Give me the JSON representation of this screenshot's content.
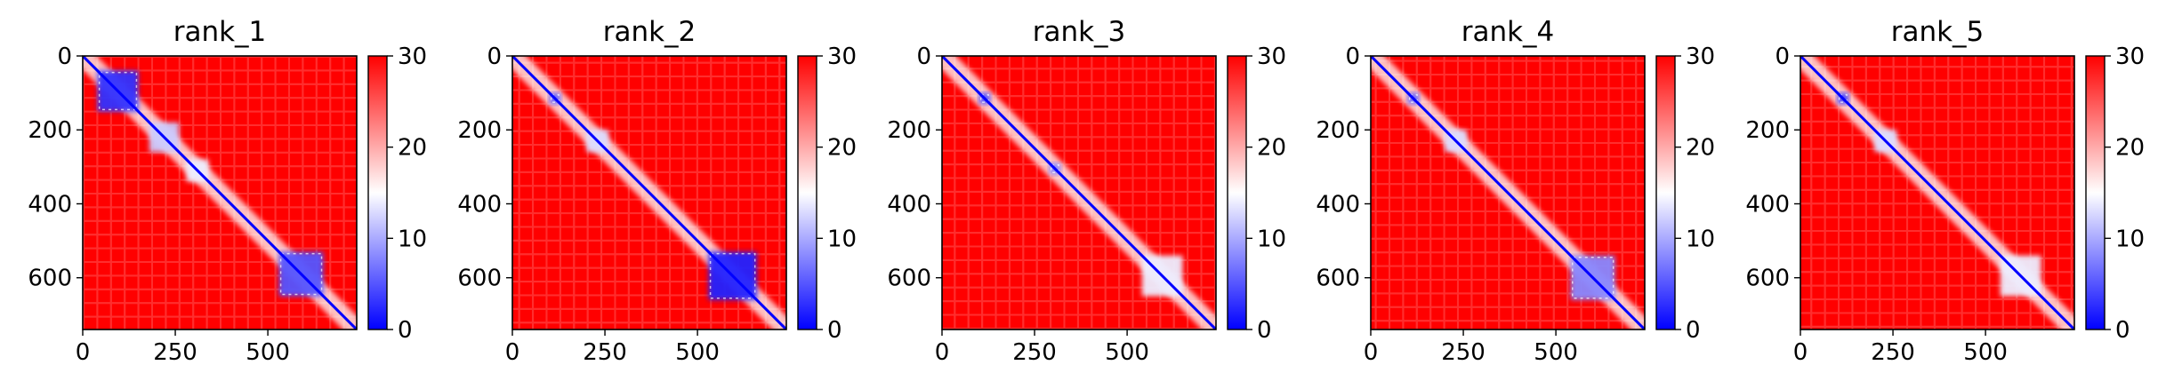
{
  "chart_data": [
    {
      "type": "heatmap",
      "title": "rank_1",
      "x_ticks": [
        "0",
        "250",
        "500"
      ],
      "x_tick_values": [
        0,
        250,
        500
      ],
      "y_ticks": [
        "0",
        "200",
        "400",
        "600"
      ],
      "y_tick_values": [
        0,
        200,
        400,
        600
      ],
      "xlim": [
        0,
        740
      ],
      "ylim": [
        740,
        0
      ],
      "colorbar": {
        "ticks": [
          "0",
          "10",
          "20",
          "30"
        ],
        "tick_values": [
          0,
          10,
          20,
          30
        ],
        "range": [
          0,
          30
        ],
        "colormap": "bwr"
      },
      "blocks": [
        {
          "x": [
            40,
            150
          ],
          "y": [
            40,
            150
          ],
          "value": 3
        },
        {
          "x": [
            530,
            650
          ],
          "y": [
            530,
            650
          ],
          "value": 5
        },
        {
          "x": [
            180,
            260
          ],
          "y": [
            180,
            260
          ],
          "value": 12
        },
        {
          "x": [
            280,
            340
          ],
          "y": [
            280,
            340
          ],
          "value": 14
        }
      ]
    },
    {
      "type": "heatmap",
      "title": "rank_2",
      "x_ticks": [
        "0",
        "250",
        "500"
      ],
      "x_tick_values": [
        0,
        250,
        500
      ],
      "y_ticks": [
        "0",
        "200",
        "400",
        "600"
      ],
      "y_tick_values": [
        0,
        200,
        400,
        600
      ],
      "xlim": [
        0,
        740
      ],
      "ylim": [
        740,
        0
      ],
      "colorbar": {
        "ticks": [
          "0",
          "10",
          "20",
          "30"
        ],
        "tick_values": [
          0,
          10,
          20,
          30
        ],
        "range": [
          0,
          30
        ],
        "colormap": "bwr"
      },
      "blocks": [
        {
          "x": [
            530,
            660
          ],
          "y": [
            530,
            660
          ],
          "value": 2
        },
        {
          "x": [
            100,
            130
          ],
          "y": [
            100,
            130
          ],
          "value": 6
        },
        {
          "x": [
            200,
            260
          ],
          "y": [
            200,
            260
          ],
          "value": 13
        }
      ]
    },
    {
      "type": "heatmap",
      "title": "rank_3",
      "x_ticks": [
        "0",
        "250",
        "500"
      ],
      "x_tick_values": [
        0,
        250,
        500
      ],
      "y_ticks": [
        "0",
        "200",
        "400",
        "600"
      ],
      "y_tick_values": [
        0,
        200,
        400,
        600
      ],
      "xlim": [
        0,
        740
      ],
      "ylim": [
        740,
        0
      ],
      "colorbar": {
        "ticks": [
          "0",
          "10",
          "20",
          "30"
        ],
        "tick_values": [
          0,
          10,
          20,
          30
        ],
        "range": [
          0,
          30
        ],
        "colormap": "bwr"
      },
      "blocks": [
        {
          "x": [
            540,
            650
          ],
          "y": [
            540,
            650
          ],
          "value": 14
        },
        {
          "x": [
            100,
            130
          ],
          "y": [
            100,
            130
          ],
          "value": 5
        },
        {
          "x": [
            290,
            320
          ],
          "y": [
            290,
            320
          ],
          "value": 8
        }
      ]
    },
    {
      "type": "heatmap",
      "title": "rank_4",
      "x_ticks": [
        "0",
        "250",
        "500"
      ],
      "x_tick_values": [
        0,
        250,
        500
      ],
      "y_ticks": [
        "0",
        "200",
        "400",
        "600"
      ],
      "y_tick_values": [
        0,
        200,
        400,
        600
      ],
      "xlim": [
        0,
        740
      ],
      "ylim": [
        740,
        0
      ],
      "colorbar": {
        "ticks": [
          "0",
          "10",
          "20",
          "30"
        ],
        "tick_values": [
          0,
          10,
          20,
          30
        ],
        "range": [
          0,
          30
        ],
        "colormap": "bwr"
      },
      "blocks": [
        {
          "x": [
            540,
            660
          ],
          "y": [
            540,
            660
          ],
          "value": 8
        },
        {
          "x": [
            100,
            130
          ],
          "y": [
            100,
            130
          ],
          "value": 6
        },
        {
          "x": [
            200,
            260
          ],
          "y": [
            200,
            260
          ],
          "value": 13
        }
      ]
    },
    {
      "type": "heatmap",
      "title": "rank_5",
      "x_ticks": [
        "0",
        "250",
        "500"
      ],
      "x_tick_values": [
        0,
        250,
        500
      ],
      "y_ticks": [
        "0",
        "200",
        "400",
        "600"
      ],
      "y_tick_values": [
        0,
        200,
        400,
        600
      ],
      "xlim": [
        0,
        740
      ],
      "ylim": [
        740,
        0
      ],
      "colorbar": {
        "ticks": [
          "0",
          "10",
          "20",
          "30"
        ],
        "tick_values": [
          0,
          10,
          20,
          30
        ],
        "range": [
          0,
          30
        ],
        "colormap": "bwr"
      },
      "blocks": [
        {
          "x": [
            540,
            650
          ],
          "y": [
            540,
            650
          ],
          "value": 14
        },
        {
          "x": [
            100,
            130
          ],
          "y": [
            100,
            130
          ],
          "value": 4
        },
        {
          "x": [
            200,
            260
          ],
          "y": [
            200,
            260
          ],
          "value": 13
        }
      ]
    }
  ]
}
